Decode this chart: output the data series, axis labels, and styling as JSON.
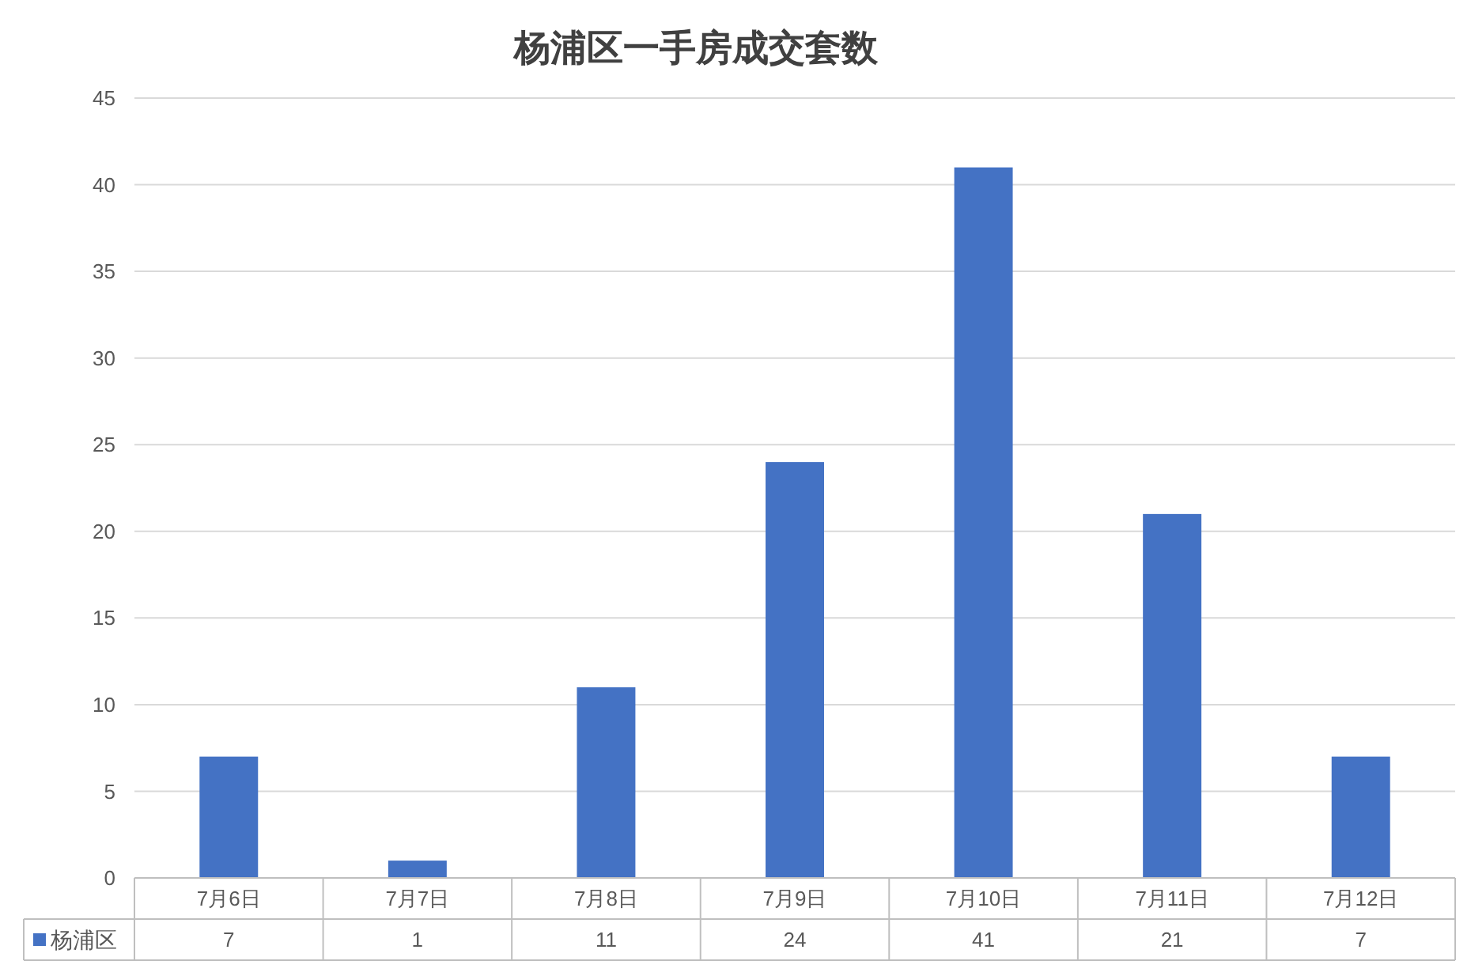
{
  "chart_data": {
    "type": "bar",
    "title": "杨浦区一手房成交套数",
    "categories": [
      "7月6日",
      "7月7日",
      "7月8日",
      "7月9日",
      "7月10日",
      "7月11日",
      "7月12日"
    ],
    "series": [
      {
        "name": "杨浦区",
        "color": "#4472c4",
        "values": [
          7,
          1,
          11,
          24,
          41,
          21,
          7
        ]
      }
    ],
    "ylim": [
      0,
      45
    ],
    "yticks": [
      0,
      5,
      10,
      15,
      20,
      25,
      30,
      35,
      40,
      45
    ],
    "grid": "y",
    "legend": "bottom",
    "data_labels": true
  }
}
